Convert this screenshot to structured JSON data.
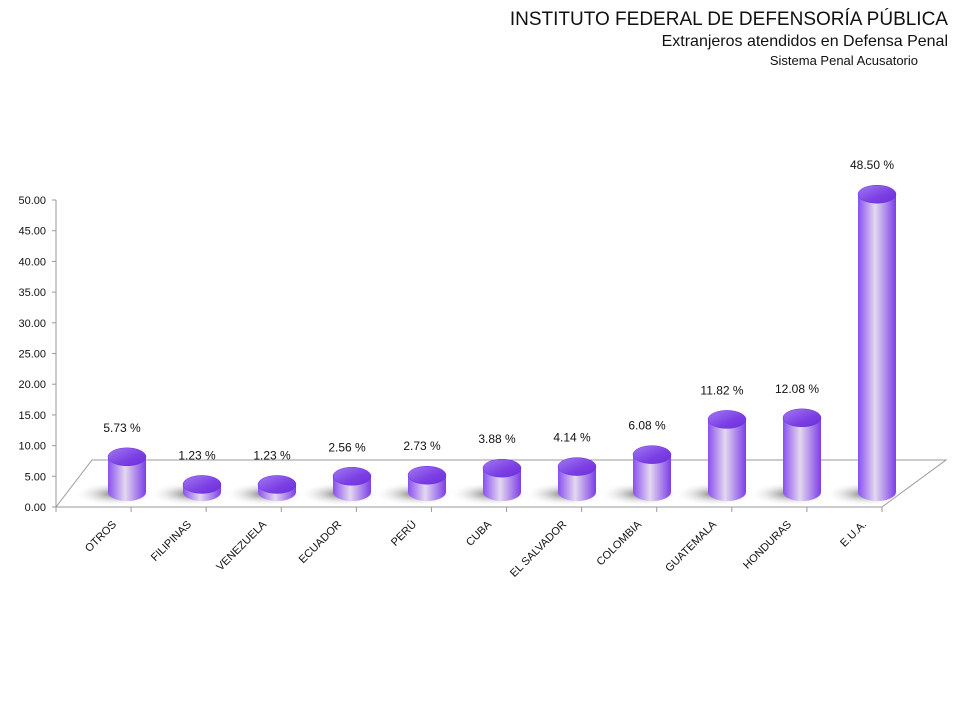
{
  "header": {
    "title": "INSTITUTO FEDERAL DE DEFENSORÍA PÚBLICA",
    "subtitle": "Extranjeros atendidos en Defensa Penal",
    "caption": "Sistema Penal Acusatorio"
  },
  "chart_data": {
    "type": "bar",
    "style": "3d-cylinder",
    "categories": [
      "OTROS",
      "FILIPINAS",
      "VENEZUELA",
      "ECUADOR",
      "PERÚ",
      "CUBA",
      "EL SALVADOR",
      "COLOMBIA",
      "GUATEMALA",
      "HONDURAS",
      "E.U.A."
    ],
    "values": [
      5.73,
      1.23,
      1.23,
      2.56,
      2.73,
      3.88,
      4.14,
      6.08,
      11.82,
      12.08,
      48.5
    ],
    "data_labels": [
      "5.73 %",
      "1.23 %",
      "1.23 %",
      "2.56 %",
      "2.73 %",
      "3.88 %",
      "4.14 %",
      "6.08 %",
      "11.82 %",
      "12.08 %",
      "48.50 %"
    ],
    "y_ticks": [
      "0.00",
      "5.00",
      "10.00",
      "15.00",
      "20.00",
      "25.00",
      "30.00",
      "35.00",
      "40.00",
      "45.00",
      "50.00"
    ],
    "ylim": [
      0,
      50
    ],
    "grid": false,
    "legend": "none",
    "colors": {
      "bar_top": "#7b3fe4",
      "bar_light": "#d9c9ec",
      "bar_dark": "#8a4ff0",
      "floor": "#ffffff"
    }
  }
}
